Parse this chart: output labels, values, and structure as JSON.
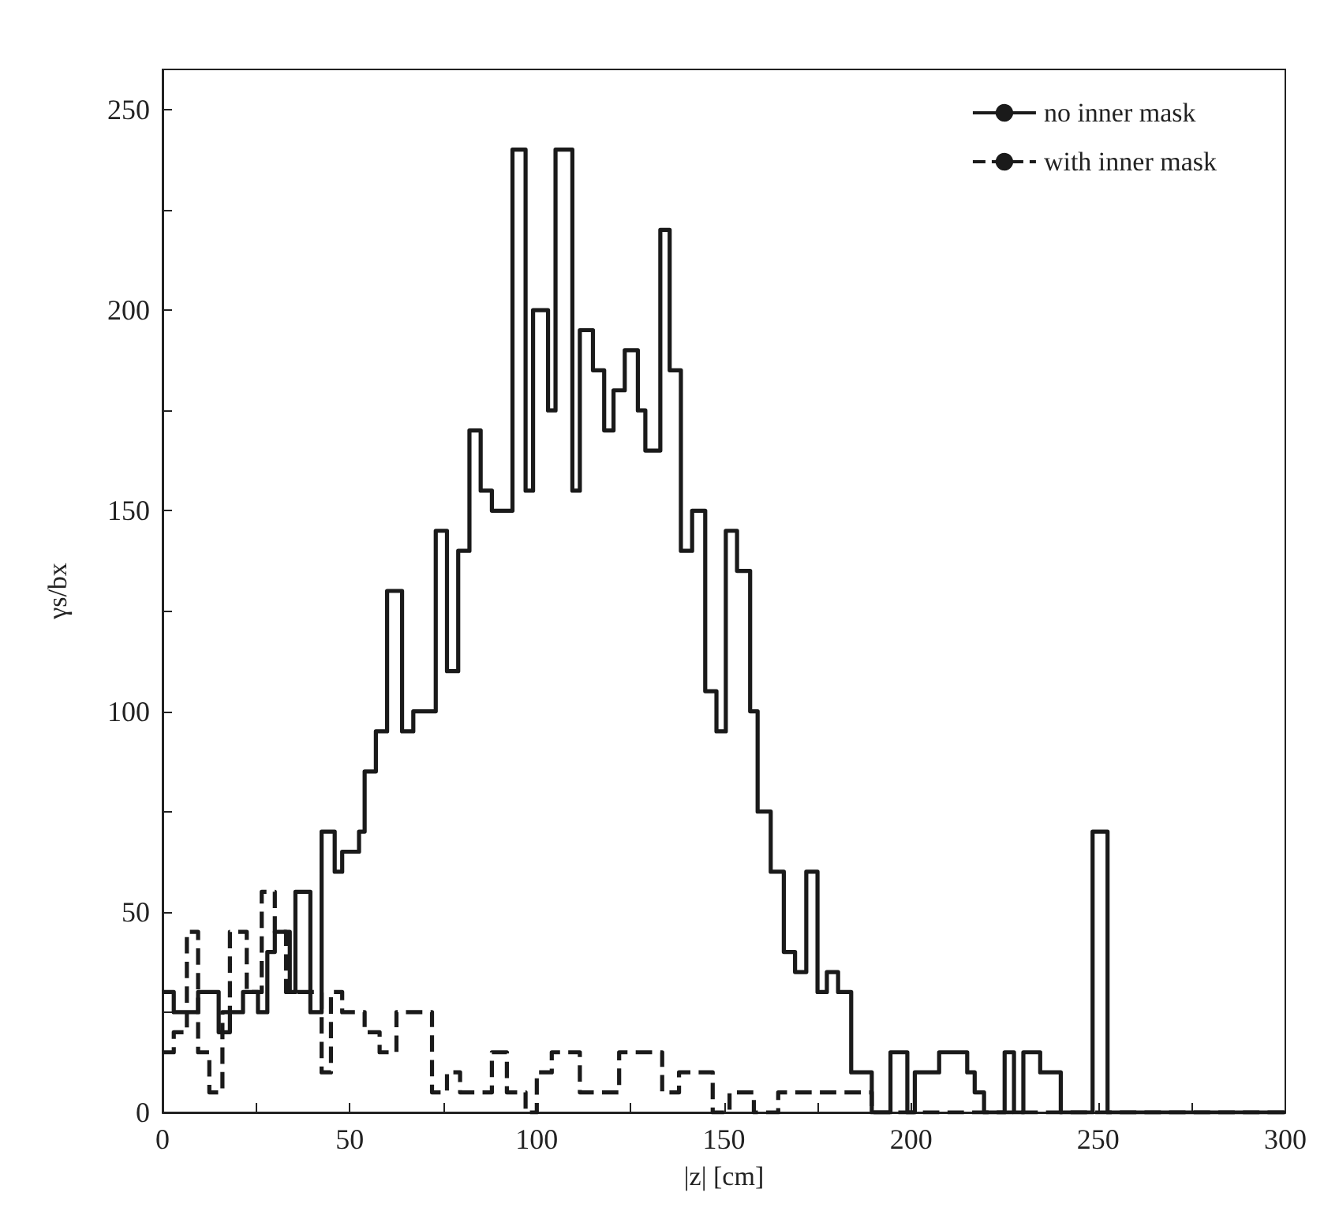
{
  "chart_data": {
    "type": "step",
    "xlabel": "|z| [cm]",
    "ylabel": "γs/bx",
    "series": [
      {
        "name": "no inner mask",
        "color": "#1a1a1a",
        "line_style": "solid",
        "x": [
          0,
          3,
          9.5,
          15,
          18,
          21.5,
          25.5,
          28,
          30,
          34,
          35.5,
          39.5,
          42.5,
          46,
          48,
          52.5,
          54,
          57,
          60,
          64,
          67,
          73,
          76,
          79,
          82,
          85,
          88,
          93.5,
          97,
          99,
          103,
          105,
          109.5,
          111.5,
          115,
          118,
          120.5,
          123.5,
          127,
          129,
          133,
          135.5,
          138.5,
          141.5,
          145,
          148,
          150.5,
          153.5,
          157,
          159,
          162.5,
          166,
          169,
          172,
          175,
          177.5,
          180.5,
          184,
          189.5,
          194.5,
          199,
          201,
          207.5,
          215,
          217,
          219.5,
          225,
          227.5,
          230,
          234.5,
          240,
          248.5,
          252.5,
          300
        ],
        "values": [
          30,
          25,
          30,
          20,
          25,
          30,
          25,
          40,
          45,
          30,
          55,
          25,
          70,
          60,
          65,
          70,
          85,
          95,
          130,
          95,
          100,
          145,
          110,
          140,
          170,
          155,
          150,
          240,
          155,
          200,
          175,
          240,
          155,
          195,
          185,
          170,
          180,
          190,
          175,
          165,
          220,
          185,
          140,
          150,
          105,
          95,
          145,
          135,
          100,
          75,
          60,
          40,
          35,
          60,
          30,
          35,
          30,
          10,
          0,
          15,
          0,
          10,
          15,
          10,
          5,
          0,
          15,
          0,
          15,
          10,
          0,
          70,
          0,
          0
        ]
      },
      {
        "name": "with inner mask",
        "color": "#1a1a1a",
        "line_style": "dashed",
        "x": [
          0,
          3,
          6.5,
          9.5,
          12.5,
          16,
          18,
          22.5,
          26.5,
          30,
          33,
          42.5,
          45,
          48,
          54,
          58,
          62.5,
          72,
          76,
          79.5,
          88,
          92,
          97,
          100,
          104,
          111.5,
          122,
          133.5,
          138,
          147,
          151.5,
          158,
          164.5,
          189.5,
          300
        ],
        "values": [
          15,
          20,
          45,
          15,
          5,
          25,
          45,
          30,
          55,
          45,
          30,
          10,
          30,
          25,
          20,
          15,
          25,
          5,
          10,
          5,
          15,
          5,
          0,
          10,
          15,
          5,
          15,
          5,
          10,
          0,
          5,
          0,
          5,
          0,
          0
        ]
      }
    ],
    "xlim": [
      0,
      300
    ],
    "xticks": [
      0,
      {
        "value": 25,
        "label": null
      },
      50,
      {
        "value": 75,
        "label": null
      },
      100,
      {
        "value": 125,
        "label": null
      },
      150,
      {
        "value": 175,
        "label": null
      },
      200,
      {
        "value": 225,
        "label": null
      },
      250,
      {
        "value": 275,
        "label": null
      },
      300
    ],
    "ylim": [
      0,
      260
    ],
    "yticks": [
      0,
      {
        "value": 25,
        "label": null
      },
      50,
      {
        "value": 75,
        "label": null
      },
      100,
      {
        "value": 125,
        "label": null
      },
      150,
      {
        "value": 175,
        "label": null
      },
      200,
      {
        "value": 225,
        "label": null
      },
      250
    ],
    "grid": false,
    "legend": "top right"
  }
}
